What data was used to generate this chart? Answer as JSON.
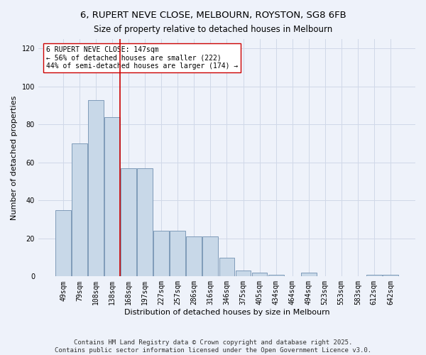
{
  "title1": "6, RUPERT NEVE CLOSE, MELBOURN, ROYSTON, SG8 6FB",
  "title2": "Size of property relative to detached houses in Melbourn",
  "xlabel": "Distribution of detached houses by size in Melbourn",
  "ylabel": "Number of detached properties",
  "categories": [
    "49sqm",
    "79sqm",
    "108sqm",
    "138sqm",
    "168sqm",
    "197sqm",
    "227sqm",
    "257sqm",
    "286sqm",
    "316sqm",
    "346sqm",
    "375sqm",
    "405sqm",
    "434sqm",
    "464sqm",
    "494sqm",
    "523sqm",
    "553sqm",
    "583sqm",
    "612sqm",
    "642sqm"
  ],
  "values": [
    35,
    70,
    93,
    84,
    57,
    57,
    24,
    24,
    21,
    21,
    10,
    3,
    2,
    1,
    0,
    2,
    0,
    0,
    0,
    1,
    1
  ],
  "bar_color": "#c8d8e8",
  "bar_edge_color": "#7090b0",
  "vline_bar_index": 3,
  "vline_color": "#cc0000",
  "annotation_title": "6 RUPERT NEVE CLOSE: 147sqm",
  "annotation_line1": "← 56% of detached houses are smaller (222)",
  "annotation_line2": "44% of semi-detached houses are larger (174) →",
  "annotation_box_color": "#ffffff",
  "annotation_box_edge": "#cc0000",
  "ylim": [
    0,
    125
  ],
  "yticks": [
    0,
    20,
    40,
    60,
    80,
    100,
    120
  ],
  "grid_color": "#d0d8e8",
  "background_color": "#eef2fa",
  "footer1": "Contains HM Land Registry data © Crown copyright and database right 2025.",
  "footer2": "Contains public sector information licensed under the Open Government Licence v3.0.",
  "title_fontsize": 9.5,
  "subtitle_fontsize": 8.5,
  "axis_label_fontsize": 8,
  "tick_fontsize": 7,
  "annotation_fontsize": 7,
  "footer_fontsize": 6.5
}
